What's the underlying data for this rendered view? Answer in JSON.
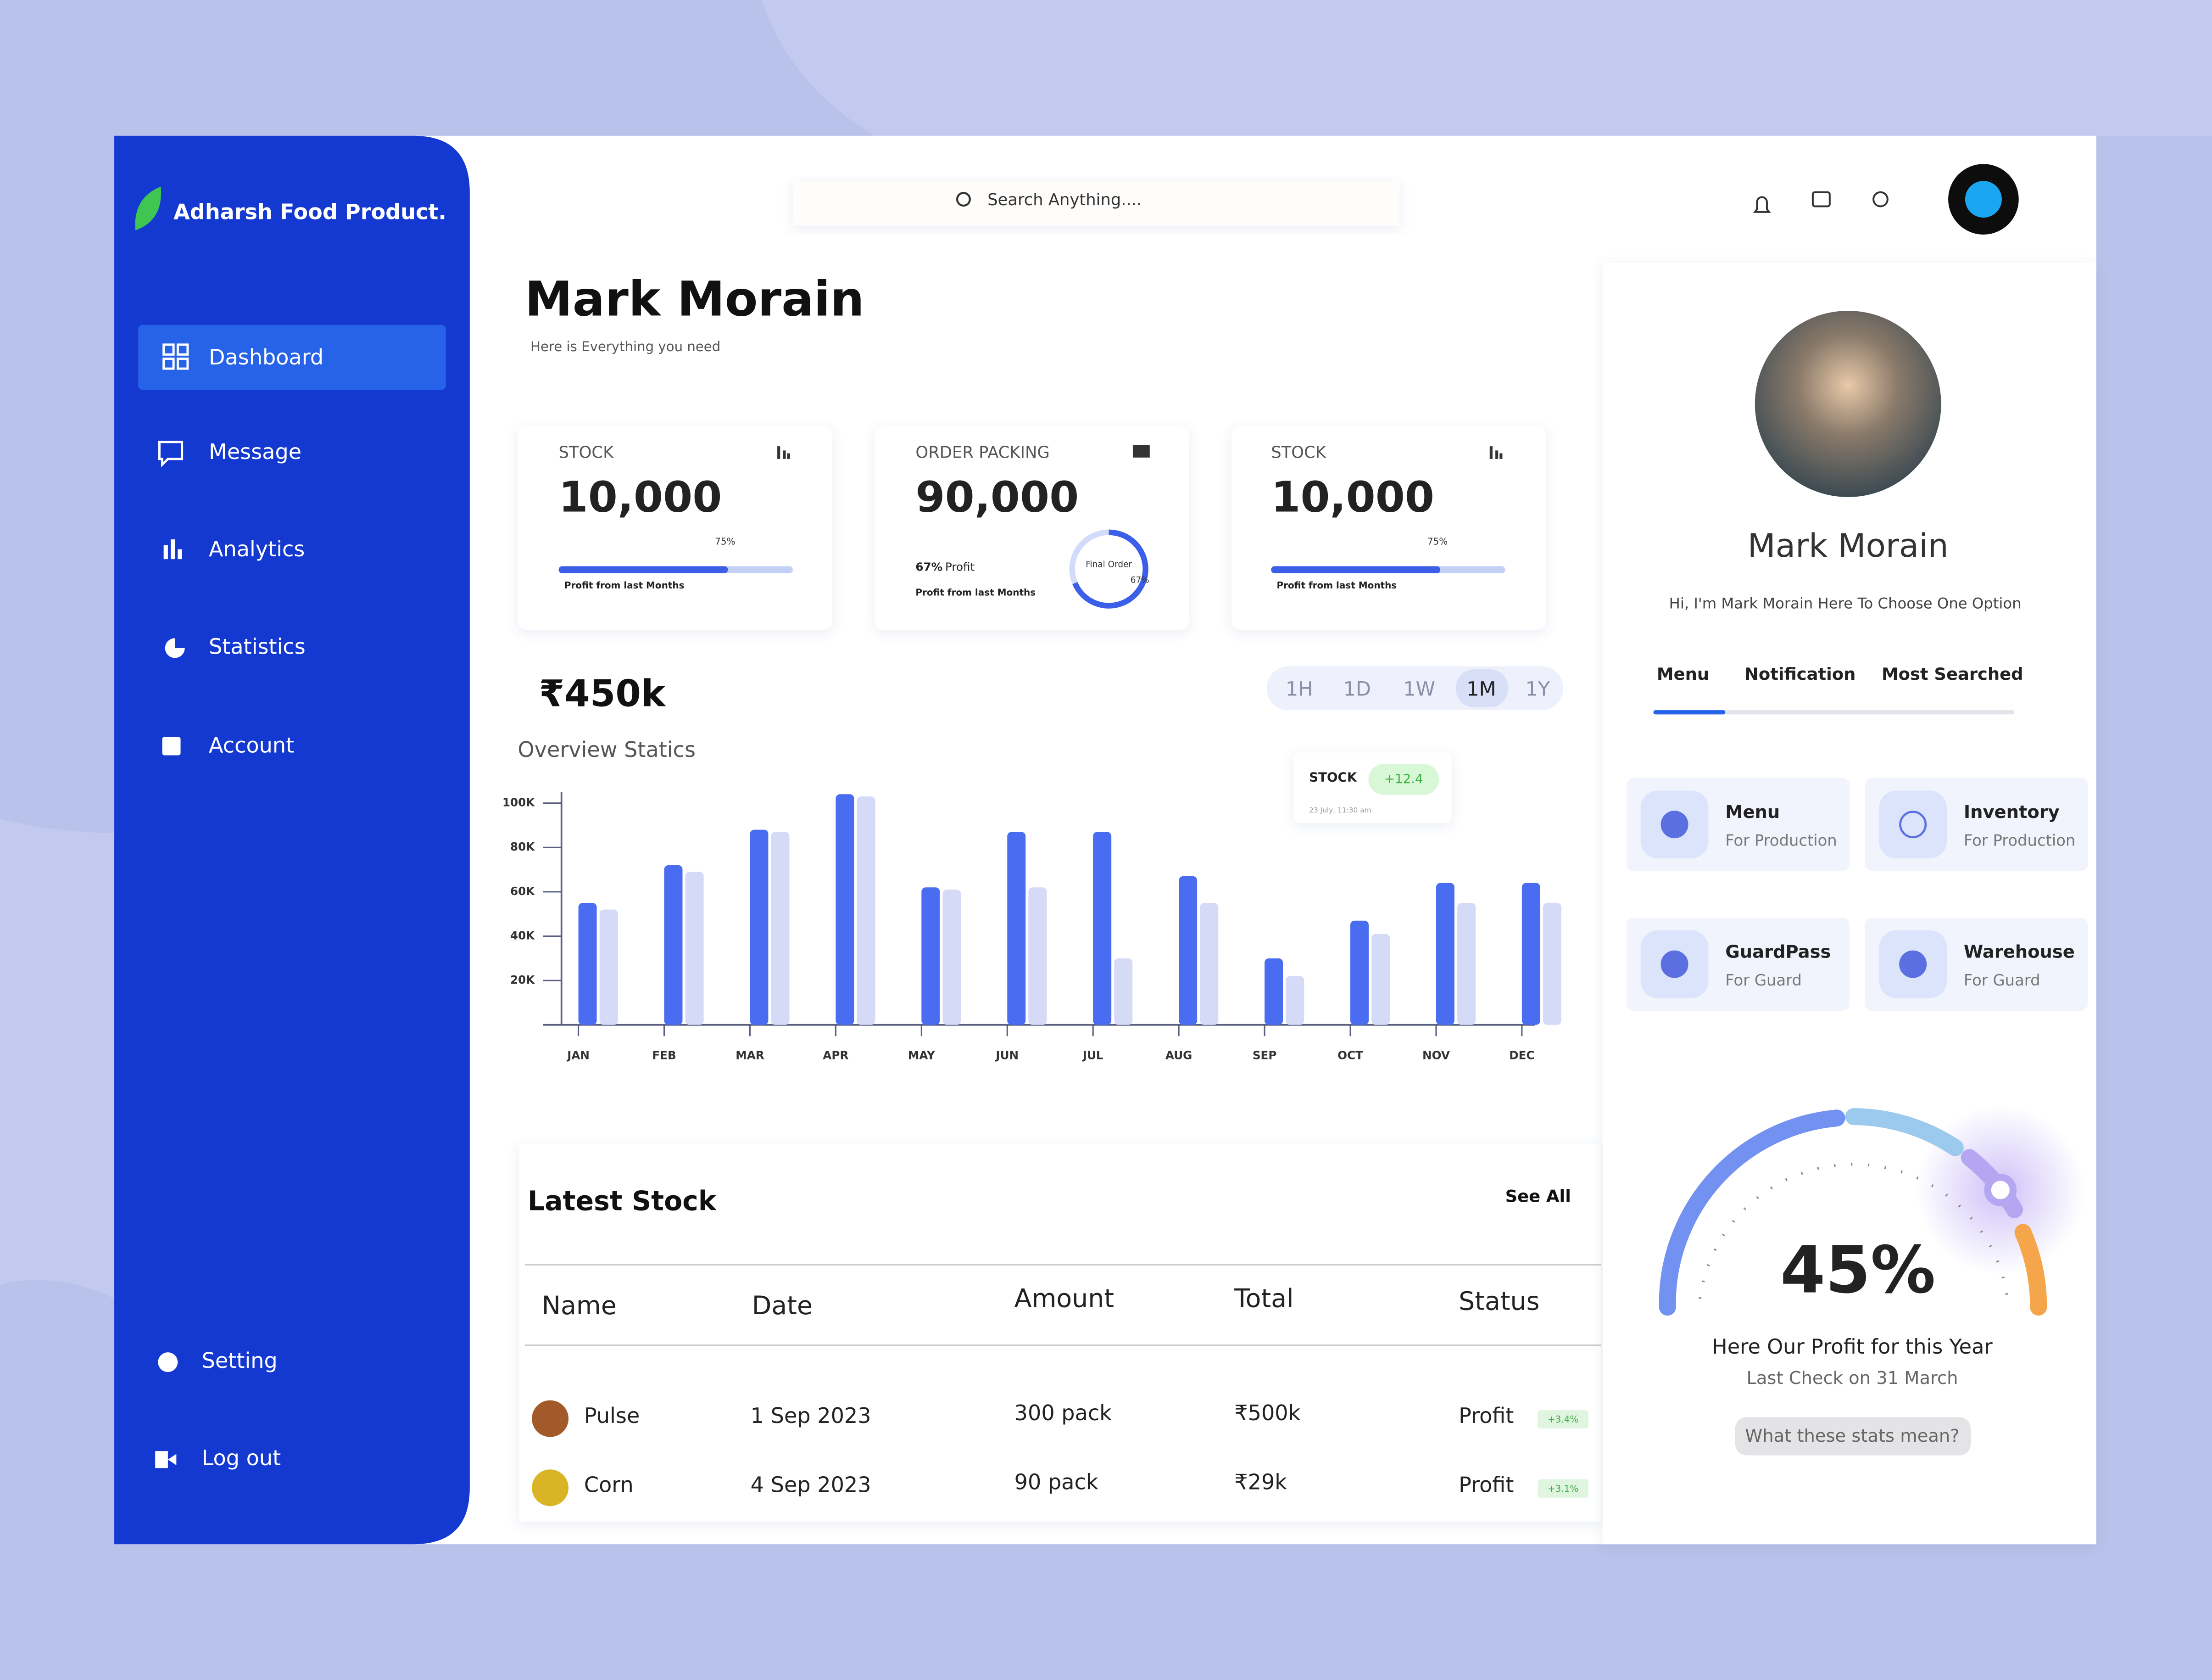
{
  "brand": "Adharsh Food Product.",
  "nav": [
    "Dashboard",
    "Message",
    "Analytics",
    "Statistics",
    "Account"
  ],
  "nav_bottom": [
    "Setting",
    "Log out"
  ],
  "search": "Search Anything....",
  "header": {
    "title": "Mark Morain",
    "subtitle": "Here is Everything you need"
  },
  "cards": [
    {
      "label": "STOCK",
      "value": "10,000",
      "percent": "75%",
      "note": "Profit from last Months"
    },
    {
      "label": "ORDER PACKING",
      "value": "90,000",
      "profit_pct": "67%",
      "profit": "Profit",
      "note": "Profit from last Months",
      "ring_label": "Final Order",
      "ring_pct": "67%"
    },
    {
      "label": "STOCK",
      "value": "10,000",
      "percent": "75%",
      "note": "Profit from last Months"
    }
  ],
  "overview": {
    "amount": "₹450k",
    "title": "Overview Statics",
    "ranges": [
      "1H",
      "1D",
      "1W",
      "1M",
      "1Y"
    ],
    "tooltip": {
      "label": "STOCK",
      "change": "+12.4",
      "date": "23 July, 11:30 am"
    }
  },
  "chart_data": {
    "type": "bar",
    "categories": [
      "JAN",
      "FEB",
      "MAR",
      "APR",
      "MAY",
      "JUN",
      "JUL",
      "AUG",
      "SEP",
      "OCT",
      "NOV",
      "DEC"
    ],
    "series": [
      {
        "color": "#4a6cf0",
        "values": [
          55,
          72,
          88,
          104,
          62,
          87,
          87,
          67,
          30,
          47,
          64,
          64
        ]
      },
      {
        "color": "#d5daf7",
        "values": [
          52,
          69,
          87,
          103,
          61,
          62,
          30,
          55,
          22,
          41,
          55,
          55
        ]
      }
    ],
    "ylim": [
      0,
      105
    ],
    "yticks": [
      {
        "value": 20,
        "label": "20K"
      },
      {
        "value": 40,
        "label": "40K"
      },
      {
        "value": 60,
        "label": "60K"
      },
      {
        "value": 80,
        "label": "80K"
      },
      {
        "value": 100,
        "label": "100K"
      }
    ]
  },
  "latest_stock": {
    "title": "Latest Stock",
    "see_all": "See All",
    "columns": [
      "Name",
      "Date",
      "Amount",
      "Total",
      "Status"
    ],
    "rows": [
      [
        "Pulse",
        "1 Sep 2023",
        "300 pack",
        "₹500k",
        "Profit",
        "+3.4%"
      ],
      [
        "Corn",
        "4 Sep 2023",
        "90 pack",
        "₹29k",
        "Profit",
        "+3.1%"
      ]
    ]
  },
  "profile": {
    "name": "Mark  Morain",
    "bio": "Hi, I'm Mark Morain Here To Choose One Option",
    "tabs": [
      "Menu",
      "Notification",
      "Most Searched"
    ],
    "tiles": [
      {
        "title": "Menu",
        "sub": "For Production"
      },
      {
        "title": "Inventory",
        "sub": "For Production"
      },
      {
        "title": "GuardPass",
        "sub": "For Guard"
      },
      {
        "title": "Warehouse",
        "sub": "For Guard"
      }
    ]
  },
  "gauge": {
    "value": "45%",
    "title": "Here Our Profit for this Year",
    "note": "Last Check on  31 March",
    "button": "What these stats mean?"
  }
}
